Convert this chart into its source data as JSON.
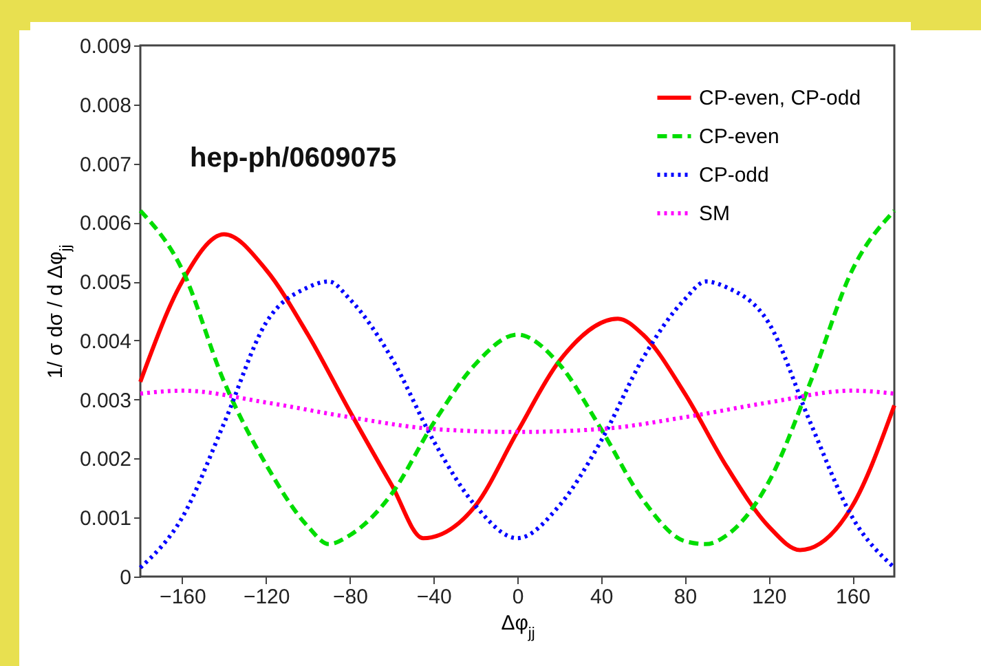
{
  "chart_data": {
    "type": "line",
    "xlabel": "Δφ$_{jj}$",
    "ylabel": "1/ σ dσ / d Δφ$_{jj}$",
    "annotations": [
      "hep-ph/0609075"
    ],
    "xlim": [
      -180,
      180
    ],
    "xticks": [
      -160,
      -120,
      -80,
      -40,
      0,
      40,
      80,
      120,
      160
    ],
    "ylim": [
      0,
      0.009
    ],
    "yticks": [
      0,
      0.001,
      0.002,
      0.003,
      0.004,
      0.005,
      0.006,
      0.007,
      0.008,
      0.009
    ],
    "grid": false,
    "legend": "top right",
    "series": [
      {
        "name": "CP-even, CP-odd",
        "color": "#ff0000",
        "line_style": "solid",
        "x": [
          -180,
          -160,
          -140,
          -120,
          -100,
          -80,
          -60,
          -45,
          -20,
          0,
          20,
          48,
          60,
          80,
          100,
          120,
          135,
          160,
          180
        ],
        "values": [
          0.0033,
          0.005,
          0.0058,
          0.0052,
          0.0041,
          0.0028,
          0.00155,
          0.00065,
          0.0012,
          0.00245,
          0.00365,
          0.00437,
          0.0041,
          0.0031,
          0.00186,
          0.00085,
          0.00045,
          0.0012,
          0.0029
        ]
      },
      {
        "name": "CP-even",
        "color": "#00dd00",
        "line_style": "dashed",
        "x": [
          -180,
          -160,
          -140,
          -120,
          -100,
          -90,
          -80,
          -60,
          -40,
          -20,
          0,
          20,
          40,
          60,
          80,
          90,
          100,
          120,
          140,
          160,
          180
        ],
        "values": [
          0.0062,
          0.0052,
          0.0033,
          0.0019,
          0.00085,
          0.00055,
          0.0007,
          0.0014,
          0.0026,
          0.0036,
          0.0041,
          0.0036,
          0.0025,
          0.0013,
          0.0006,
          0.00055,
          0.0007,
          0.0016,
          0.0033,
          0.0052,
          0.0062
        ]
      },
      {
        "name": "CP-odd",
        "color": "#0000ff",
        "line_style": "dotted",
        "x": [
          -180,
          -160,
          -140,
          -120,
          -100,
          -90,
          -80,
          -60,
          -40,
          -20,
          0,
          20,
          40,
          60,
          80,
          90,
          100,
          120,
          140,
          160,
          180
        ],
        "values": [
          0.00015,
          0.001,
          0.0026,
          0.0043,
          0.0049,
          0.005,
          0.0047,
          0.0037,
          0.0023,
          0.0012,
          0.00065,
          0.0012,
          0.0023,
          0.0037,
          0.0047,
          0.005,
          0.0049,
          0.0043,
          0.0026,
          0.001,
          0.00015
        ]
      },
      {
        "name": "SM",
        "color": "#ff00ff",
        "line_style": "dotted",
        "x": [
          -180,
          -160,
          -120,
          -80,
          -40,
          0,
          40,
          80,
          120,
          160,
          180
        ],
        "values": [
          0.0031,
          0.00315,
          0.00295,
          0.0027,
          0.0025,
          0.00245,
          0.0025,
          0.0027,
          0.00295,
          0.00315,
          0.0031
        ]
      }
    ]
  }
}
